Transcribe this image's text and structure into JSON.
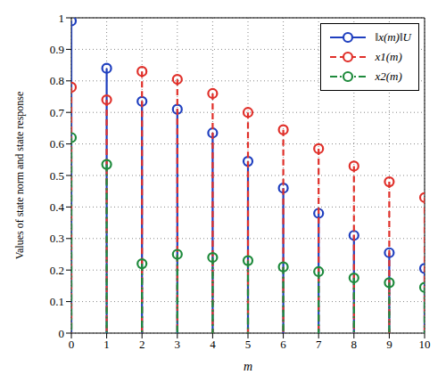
{
  "chart_data": {
    "type": "stem",
    "x_label": "m",
    "y_label": "Values of state norm and state response",
    "x": [
      0,
      1,
      2,
      3,
      4,
      5,
      6,
      7,
      8,
      9,
      10
    ],
    "xlim": [
      0,
      10
    ],
    "xticks": [
      0,
      1,
      2,
      3,
      4,
      5,
      6,
      7,
      8,
      9,
      10
    ],
    "ylim": [
      0,
      1
    ],
    "yticks": [
      0,
      0.1,
      0.2,
      0.3,
      0.4,
      0.5,
      0.6,
      0.7,
      0.8,
      0.9,
      1
    ],
    "grid": true,
    "legend": "upper right",
    "series": [
      {
        "name": "‖x(m)‖U",
        "color": "#1f3fbf",
        "line_style": "solid",
        "marker": "circle",
        "values": [
          0.99,
          0.84,
          0.735,
          0.71,
          0.635,
          0.545,
          0.46,
          0.38,
          0.31,
          0.255,
          0.205
        ]
      },
      {
        "name": "x1(m)",
        "color": "#e0302a",
        "line_style": "dashed",
        "marker": "circle",
        "values": [
          0.78,
          0.74,
          0.83,
          0.805,
          0.76,
          0.7,
          0.645,
          0.585,
          0.53,
          0.48,
          0.43
        ]
      },
      {
        "name": "x2(m)",
        "color": "#1e8a3c",
        "line_style": "dashdot",
        "marker": "circle",
        "values": [
          0.62,
          0.535,
          0.22,
          0.25,
          0.24,
          0.23,
          0.21,
          0.195,
          0.175,
          0.16,
          0.145
        ]
      }
    ]
  }
}
